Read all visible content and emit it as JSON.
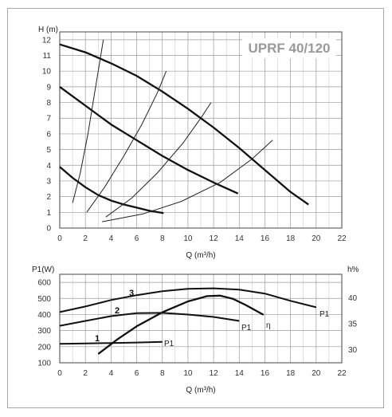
{
  "chart_data": [
    {
      "type": "line",
      "title": "UPRF 40/120",
      "ylabel": "H (m)",
      "xlabel": "Q (m³/h)",
      "xlim": [
        0,
        22
      ],
      "ylim": [
        0,
        12.5
      ],
      "xticks": [
        "0",
        "2",
        "4",
        "6",
        "8",
        "10",
        "12",
        "14",
        "16",
        "18",
        "20",
        "22"
      ],
      "yticks": [
        "0",
        "1",
        "2",
        "3",
        "4",
        "5",
        "6",
        "7",
        "8",
        "9",
        "10",
        "11",
        "12"
      ],
      "grid": true,
      "series": [
        {
          "x": [
            0,
            2,
            4,
            6,
            8,
            10,
            12,
            14,
            16,
            18,
            19.4
          ],
          "y": [
            11.7,
            11.2,
            10.5,
            9.7,
            8.7,
            7.6,
            6.4,
            5.1,
            3.7,
            2.3,
            1.5
          ]
        },
        {
          "x": [
            0,
            2,
            4,
            6,
            8,
            10,
            12,
            13.9
          ],
          "y": [
            9.0,
            7.8,
            6.6,
            5.6,
            4.6,
            3.7,
            2.9,
            2.2
          ]
        },
        {
          "x": [
            0,
            1,
            2,
            3,
            4,
            5,
            6,
            7,
            8.1
          ],
          "y": [
            3.9,
            3.2,
            2.6,
            2.1,
            1.75,
            1.5,
            1.3,
            1.1,
            0.95
          ]
        }
      ],
      "system_curves": [
        {
          "x": [
            1.0,
            1.6,
            2.2,
            2.7,
            3.1,
            3.4
          ],
          "y": [
            1.6,
            3.5,
            6.0,
            8.5,
            10.5,
            12.0
          ]
        },
        {
          "x": [
            2.1,
            3.5,
            5.0,
            6.4,
            7.6,
            8.3
          ],
          "y": [
            1.0,
            2.6,
            4.6,
            6.6,
            8.6,
            10.0
          ]
        },
        {
          "x": [
            3.6,
            5.6,
            7.6,
            9.6,
            11.0,
            11.8
          ],
          "y": [
            0.7,
            1.9,
            3.5,
            5.4,
            7.0,
            8.0
          ]
        },
        {
          "x": [
            3.3,
            6.5,
            9.5,
            12.5,
            15.0,
            16.6
          ],
          "y": [
            0.4,
            0.9,
            1.7,
            2.9,
            4.4,
            5.6
          ]
        }
      ]
    },
    {
      "type": "line",
      "ylabel": "P1(W)",
      "y2label": "h%",
      "xlabel": "Q (m³/h)",
      "xlim": [
        0,
        22
      ],
      "ylim": [
        100,
        650
      ],
      "y2lim": [
        27.5,
        44.5
      ],
      "xticks": [
        "0",
        "2",
        "4",
        "6",
        "8",
        "10",
        "12",
        "14",
        "16",
        "18",
        "20",
        "22"
      ],
      "yticks": [
        "100",
        "200",
        "300",
        "400",
        "500",
        "600"
      ],
      "y2ticks": [
        "30",
        "35",
        "40"
      ],
      "grid": true,
      "series": [
        {
          "name": "3",
          "x": [
            0,
            2,
            4,
            6,
            8,
            10,
            12,
            14,
            16,
            18,
            20
          ],
          "y": [
            415,
            450,
            490,
            520,
            545,
            560,
            563,
            555,
            530,
            485,
            445
          ]
        },
        {
          "name": "2",
          "x": [
            0,
            2,
            4,
            6,
            8,
            10,
            12,
            14
          ],
          "y": [
            330,
            360,
            390,
            408,
            410,
            400,
            385,
            360
          ]
        },
        {
          "name": "1",
          "x": [
            0,
            2,
            4,
            6,
            8
          ],
          "y": [
            218,
            220,
            223,
            226,
            230
          ]
        }
      ],
      "efficiency": {
        "x": [
          3.0,
          4.5,
          6,
          8,
          10,
          11.5,
          12.5,
          13.5,
          14.5,
          15.9
        ],
        "y": [
          29.2,
          32.0,
          34.5,
          37.2,
          39.3,
          40.3,
          40.4,
          39.8,
          38.6,
          36.7
        ]
      },
      "labels": {
        "p1": "P1",
        "eta": "η",
        "num1": "1",
        "num2": "2",
        "num3": "3"
      }
    }
  ]
}
